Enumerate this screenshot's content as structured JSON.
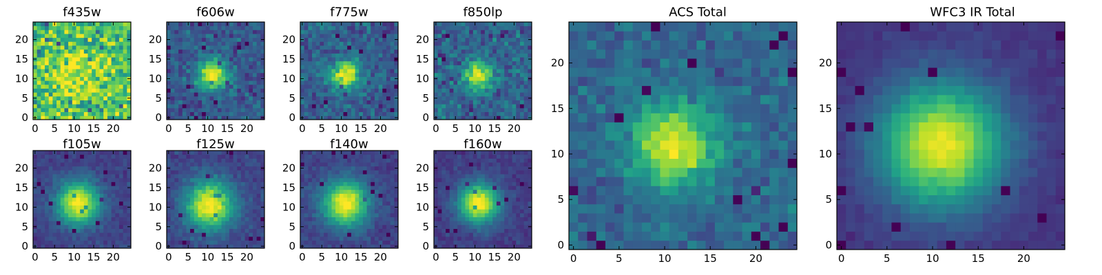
{
  "chart_data": [
    {
      "type": "heatmap",
      "title": "f435w",
      "xlim": [
        -0.5,
        24.5
      ],
      "ylim": [
        -0.5,
        24.5
      ],
      "xticks": [
        0,
        5,
        10,
        15,
        20
      ],
      "yticks": [
        0,
        5,
        10,
        15,
        20
      ],
      "colormap": "viridis",
      "source": {
        "center": [
          11,
          11
        ],
        "sigma": 4,
        "peak": 0.25,
        "background": 0.72,
        "noise": 0.22
      }
    },
    {
      "type": "heatmap",
      "title": "f606w",
      "xlim": [
        -0.5,
        24.5
      ],
      "ylim": [
        -0.5,
        24.5
      ],
      "xticks": [
        0,
        5,
        10,
        15,
        20
      ],
      "yticks": [
        0,
        5,
        10,
        15,
        20
      ],
      "colormap": "viridis",
      "source": {
        "center": [
          11,
          11
        ],
        "sigma": 2.6,
        "peak": 0.75,
        "background": 0.28,
        "noise": 0.11
      }
    },
    {
      "type": "heatmap",
      "title": "f775w",
      "xlim": [
        -0.5,
        24.5
      ],
      "ylim": [
        -0.5,
        24.5
      ],
      "xticks": [
        0,
        5,
        10,
        15,
        20
      ],
      "yticks": [
        0,
        5,
        10,
        15,
        20
      ],
      "colormap": "viridis",
      "source": {
        "center": [
          11,
          11
        ],
        "sigma": 2.6,
        "peak": 0.68,
        "background": 0.3,
        "noise": 0.12
      }
    },
    {
      "type": "heatmap",
      "title": "f850lp",
      "xlim": [
        -0.5,
        24.5
      ],
      "ylim": [
        -0.5,
        24.5
      ],
      "xticks": [
        0,
        5,
        10,
        15,
        20
      ],
      "yticks": [
        0,
        5,
        10,
        15,
        20
      ],
      "colormap": "viridis",
      "source": {
        "center": [
          11,
          11
        ],
        "sigma": 2.6,
        "peak": 0.65,
        "background": 0.32,
        "noise": 0.13
      }
    },
    {
      "type": "heatmap",
      "title": "f105w",
      "xlim": [
        -0.5,
        24.5
      ],
      "ylim": [
        -0.5,
        24.5
      ],
      "xticks": [
        0,
        5,
        10,
        15,
        20
      ],
      "yticks": [
        0,
        5,
        10,
        15,
        20
      ],
      "colormap": "viridis",
      "source": {
        "center": [
          11,
          11
        ],
        "sigma": 3.8,
        "peak": 0.82,
        "background": 0.2,
        "noise": 0.05
      }
    },
    {
      "type": "heatmap",
      "title": "f125w",
      "xlim": [
        -0.5,
        24.5
      ],
      "ylim": [
        -0.5,
        24.5
      ],
      "xticks": [
        0,
        5,
        10,
        15,
        20
      ],
      "yticks": [
        0,
        5,
        10,
        15,
        20
      ],
      "colormap": "viridis",
      "source": {
        "center": [
          10.5,
          10.5
        ],
        "sigma": 4.3,
        "peak": 0.82,
        "background": 0.2,
        "noise": 0.06
      }
    },
    {
      "type": "heatmap",
      "title": "f140w",
      "xlim": [
        -0.5,
        24.5
      ],
      "ylim": [
        -0.5,
        24.5
      ],
      "xticks": [
        0,
        5,
        10,
        15,
        20
      ],
      "yticks": [
        0,
        5,
        10,
        15,
        20
      ],
      "colormap": "viridis",
      "source": {
        "center": [
          11,
          11
        ],
        "sigma": 4.1,
        "peak": 0.82,
        "background": 0.2,
        "noise": 0.05
      }
    },
    {
      "type": "heatmap",
      "title": "f160w",
      "xlim": [
        -0.5,
        24.5
      ],
      "ylim": [
        -0.5,
        24.5
      ],
      "xticks": [
        0,
        5,
        10,
        15,
        20
      ],
      "yticks": [
        0,
        5,
        10,
        15,
        20
      ],
      "colormap": "viridis",
      "source": {
        "center": [
          11,
          11
        ],
        "sigma": 3.6,
        "peak": 0.85,
        "background": 0.18,
        "noise": 0.05
      }
    },
    {
      "type": "heatmap",
      "title": "ACS Total",
      "xlim": [
        -0.5,
        24.5
      ],
      "ylim": [
        -0.5,
        24.5
      ],
      "xticks": [
        0,
        5,
        10,
        15,
        20
      ],
      "yticks": [
        0,
        5,
        10,
        15,
        20
      ],
      "colormap": "viridis",
      "source": {
        "center": [
          11,
          11
        ],
        "sigma": 3.2,
        "peak": 0.65,
        "background": 0.33,
        "noise": 0.09
      }
    },
    {
      "type": "heatmap",
      "title": "WFC3 IR Total",
      "xlim": [
        -0.5,
        24.5
      ],
      "ylim": [
        -0.5,
        24.5
      ],
      "xticks": [
        0,
        5,
        10,
        15,
        20
      ],
      "yticks": [
        0,
        5,
        10,
        15,
        20
      ],
      "colormap": "viridis",
      "source": {
        "center": [
          11,
          11
        ],
        "sigma": 4.8,
        "peak": 0.82,
        "background": 0.15,
        "noise": 0.03
      }
    }
  ]
}
